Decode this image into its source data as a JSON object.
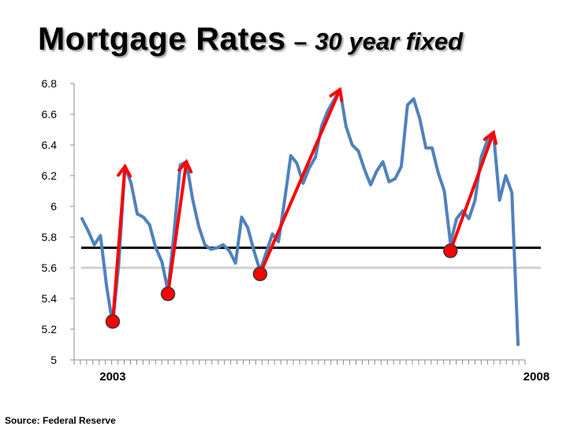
{
  "title": {
    "main": "Mortgage Rates",
    "dash": "–",
    "sub": "30 year fixed"
  },
  "source": "Source: Federal Reserve",
  "chart_data": {
    "type": "line",
    "title": "Mortgage Rates – 30 year fixed",
    "xlabel": "",
    "ylabel": "",
    "ylim": [
      5,
      6.8
    ],
    "yticks": [
      "5",
      "5.2",
      "5.4",
      "5.6",
      "5.8",
      "6",
      "6.2",
      "6.4",
      "6.6",
      "6.8"
    ],
    "x_labels": [
      {
        "index": 5,
        "label": "2003"
      },
      {
        "index": 74,
        "label": "2008"
      }
    ],
    "grid": false,
    "series": [
      {
        "color": "#4f81bd",
        "values": [
          5.92,
          5.84,
          5.75,
          5.81,
          5.48,
          5.23,
          5.63,
          6.26,
          6.15,
          5.95,
          5.93,
          5.88,
          5.73,
          5.64,
          5.45,
          5.83,
          6.27,
          6.29,
          6.05,
          5.87,
          5.75,
          5.72,
          5.73,
          5.75,
          5.71,
          5.63,
          5.93,
          5.86,
          5.71,
          5.58,
          5.7,
          5.82,
          5.77,
          6.04,
          6.33,
          6.28,
          6.15,
          6.25,
          6.32,
          6.52,
          6.62,
          6.69,
          6.76,
          6.52,
          6.4,
          6.36,
          6.24,
          6.14,
          6.23,
          6.29,
          6.16,
          6.18,
          6.26,
          6.66,
          6.7,
          6.57,
          6.38,
          6.38,
          6.22,
          6.1,
          5.76,
          5.92,
          5.97,
          5.92,
          6.04,
          6.32,
          6.43,
          6.48,
          6.04,
          6.2,
          6.09,
          5.1
        ]
      }
    ],
    "reference_lines": [
      {
        "value": 5.73,
        "color": "#000000"
      },
      {
        "value": 5.6,
        "color": "#d0d0d0"
      }
    ],
    "markers": [
      {
        "index": 5,
        "value": 5.25,
        "color": "#ff0000"
      },
      {
        "index": 14,
        "value": 5.43,
        "color": "#ff0000"
      },
      {
        "index": 29,
        "value": 5.56,
        "color": "#ff0000"
      },
      {
        "index": 60,
        "value": 5.71,
        "color": "#ff0000"
      }
    ],
    "arrows": [
      {
        "from": [
          5,
          5.25
        ],
        "to": [
          7,
          6.26
        ],
        "color": "#ff0000"
      },
      {
        "from": [
          14,
          5.43
        ],
        "to": [
          17,
          6.29
        ],
        "color": "#ff0000"
      },
      {
        "from": [
          29,
          5.56
        ],
        "to": [
          42,
          6.76
        ],
        "color": "#ff0000"
      },
      {
        "from": [
          60,
          5.71
        ],
        "to": [
          67,
          6.48
        ],
        "color": "#ff0000"
      }
    ]
  }
}
